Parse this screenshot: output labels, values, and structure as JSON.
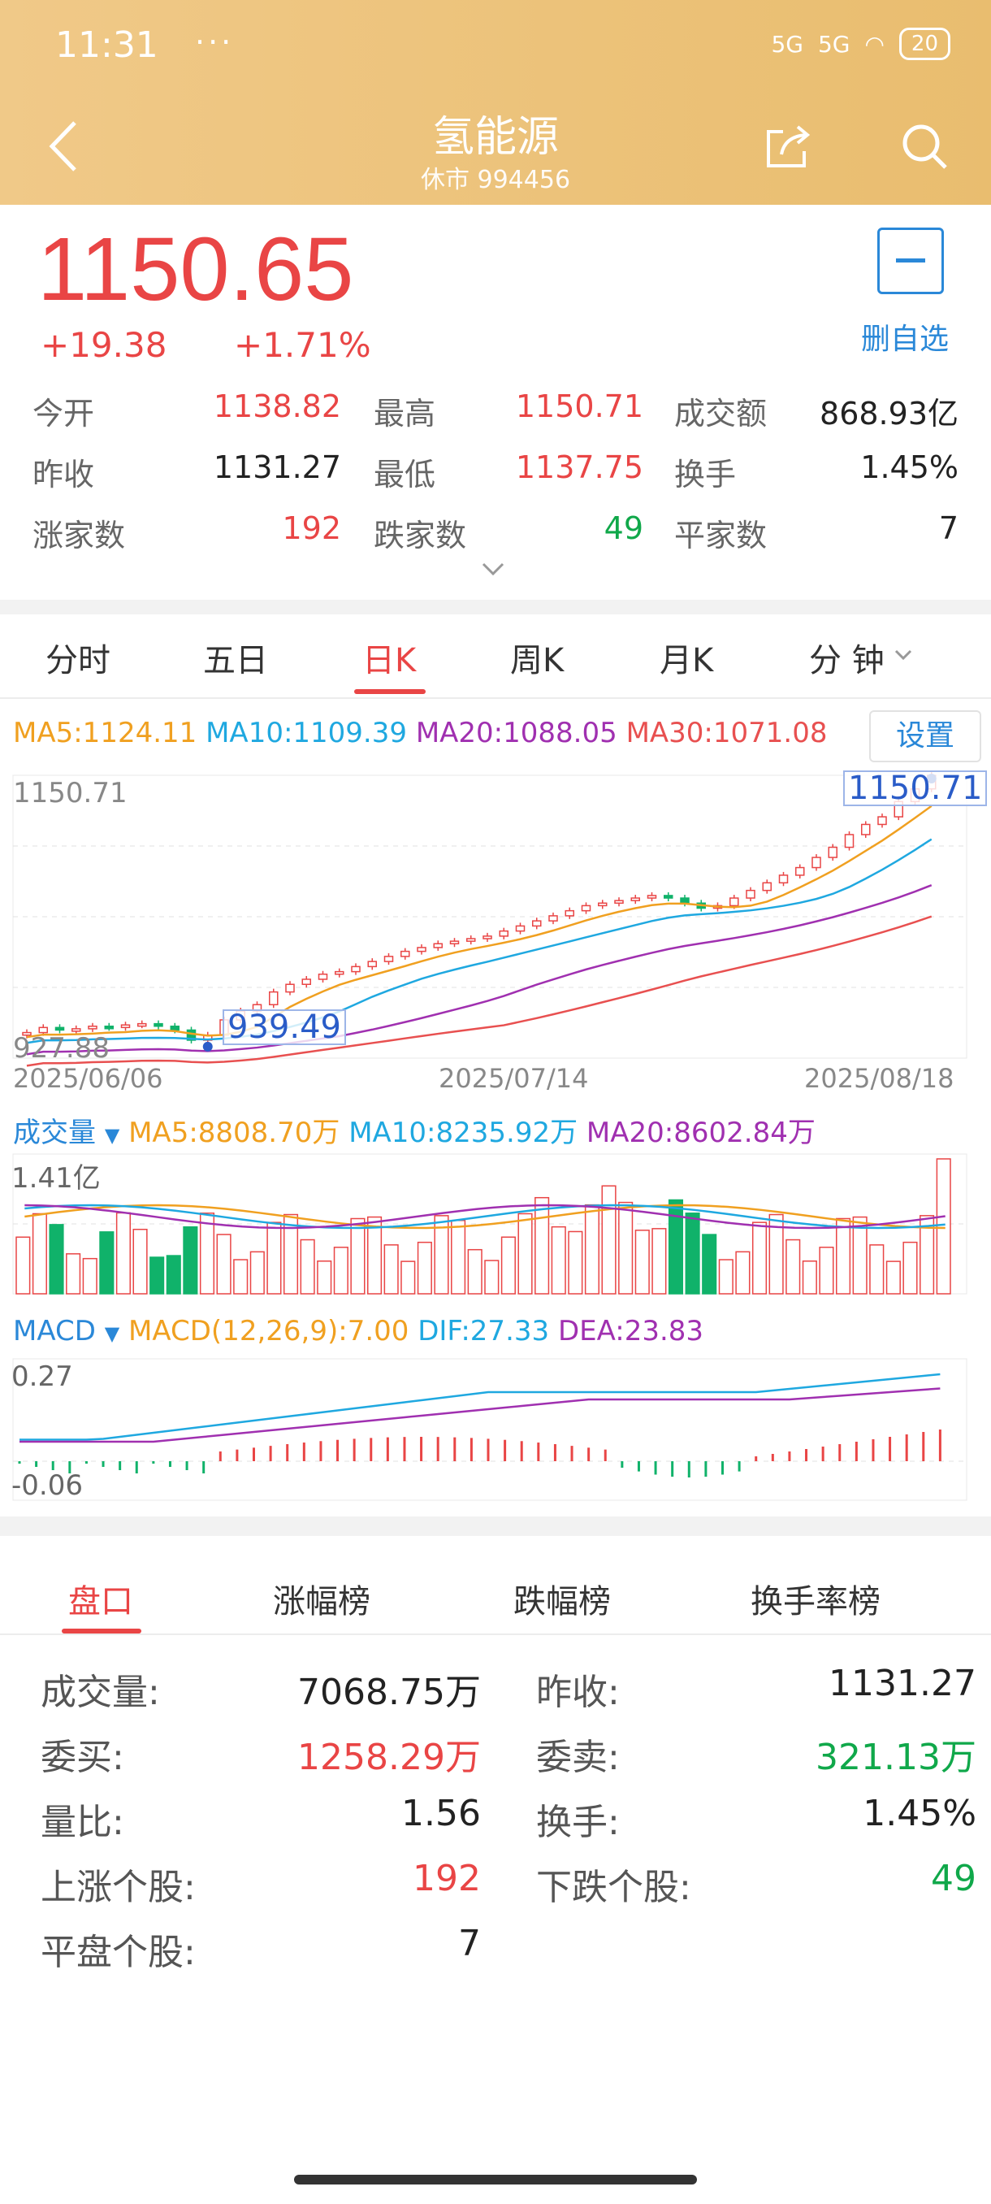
{
  "status_bar": {
    "time": "11:31",
    "dots": "···",
    "network1": "5G",
    "network2": "5G",
    "battery": "20"
  },
  "header": {
    "title": "氢能源",
    "subtitle": "休市 994456"
  },
  "quote": {
    "price": "1150.65",
    "change": "+19.38",
    "change_pct": "+1.71%",
    "remove_watchlist": "删自选"
  },
  "stats": [
    {
      "label": "今开",
      "value": "1138.82",
      "color": "red"
    },
    {
      "label": "最高",
      "value": "1150.71",
      "color": "red"
    },
    {
      "label": "成交额",
      "value": "868.93亿",
      "color": "dark"
    },
    {
      "label": "昨收",
      "value": "1131.27",
      "color": "dark"
    },
    {
      "label": "最低",
      "value": "1137.75",
      "color": "red"
    },
    {
      "label": "换手",
      "value": "1.45%",
      "color": "dark"
    },
    {
      "label": "涨家数",
      "value": "192",
      "color": "red"
    },
    {
      "label": "跌家数",
      "value": "49",
      "color": "green"
    },
    {
      "label": "平家数",
      "value": "7",
      "color": "dark"
    }
  ],
  "chart_tabs": [
    "分时",
    "五日",
    "日K",
    "周K",
    "月K",
    "分 钟"
  ],
  "active_chart_tab": 2,
  "ma": {
    "ma5": "MA5:1124.11",
    "ma10": "MA10:1109.39",
    "ma20": "MA20:1088.05",
    "ma30": "MA30:1071.08",
    "settings": "设置",
    "colors": {
      "ma5": "#f0a020",
      "ma10": "#1fa8e0",
      "ma20": "#a030b0",
      "ma30": "#e85050"
    }
  },
  "kline": {
    "max_label": "1150.71",
    "min_label": "927.88",
    "high_marker": "1150.71",
    "low_marker": "939.49",
    "dates": [
      "2025/06/06",
      "2025/07/14",
      "2025/08/18"
    ]
  },
  "volume": {
    "title": "成交量",
    "ma5": "MA5:8808.70万",
    "ma10": "MA10:8235.92万",
    "ma20": "MA20:8602.84万",
    "max_label": "1.41亿"
  },
  "macd": {
    "title": "MACD",
    "macd": "MACD(12,26,9):7.00",
    "dif": "DIF:27.33",
    "dea": "DEA:23.83",
    "max_label": "0.27",
    "min_label": "-0.06"
  },
  "chart_data": {
    "type": "candlestick",
    "x": [
      "2025/06/06",
      "2025/07/14",
      "2025/08/18"
    ],
    "ylim": [
      927.88,
      1150.71
    ],
    "last_close": 1150.65,
    "high": 1150.71,
    "low_marker": 939.49,
    "ma": {
      "MA5": 1124.11,
      "MA10": 1109.39,
      "MA20": 1088.05,
      "MA30": 1071.08
    },
    "closes": [
      948,
      952,
      950,
      951,
      953,
      952,
      954,
      955,
      953,
      950,
      942,
      946,
      958,
      965,
      970,
      980,
      986,
      990,
      994,
      996,
      1000,
      1004,
      1008,
      1012,
      1015,
      1018,
      1020,
      1022,
      1024,
      1028,
      1032,
      1036,
      1040,
      1044,
      1048,
      1050,
      1052,
      1054,
      1056,
      1054,
      1050,
      1046,
      1048,
      1054,
      1060,
      1066,
      1072,
      1078,
      1086,
      1094,
      1104,
      1112,
      1118,
      1130,
      1140,
      1150.65
    ]
  },
  "bottom_tabs": [
    "盘口",
    "涨幅榜",
    "跌幅榜",
    "换手率榜"
  ],
  "pankou": {
    "left": [
      {
        "label": "成交量:",
        "value": "7068.75万",
        "color": "dark"
      },
      {
        "label": "委买:",
        "value": "1258.29万",
        "color": "red"
      },
      {
        "label": "量比:",
        "value": "1.56",
        "color": "dark"
      },
      {
        "label": "上涨个股:",
        "value": "192",
        "color": "red"
      },
      {
        "label": "平盘个股:",
        "value": "7",
        "color": "dark"
      }
    ],
    "right": [
      {
        "label": "昨收:",
        "value": "1131.27",
        "color": "dark"
      },
      {
        "label": "委卖:",
        "value": "321.13万",
        "color": "green"
      },
      {
        "label": "换手:",
        "value": "1.45%",
        "color": "dark"
      },
      {
        "label": "下跌个股:",
        "value": "49",
        "color": "green"
      }
    ]
  }
}
